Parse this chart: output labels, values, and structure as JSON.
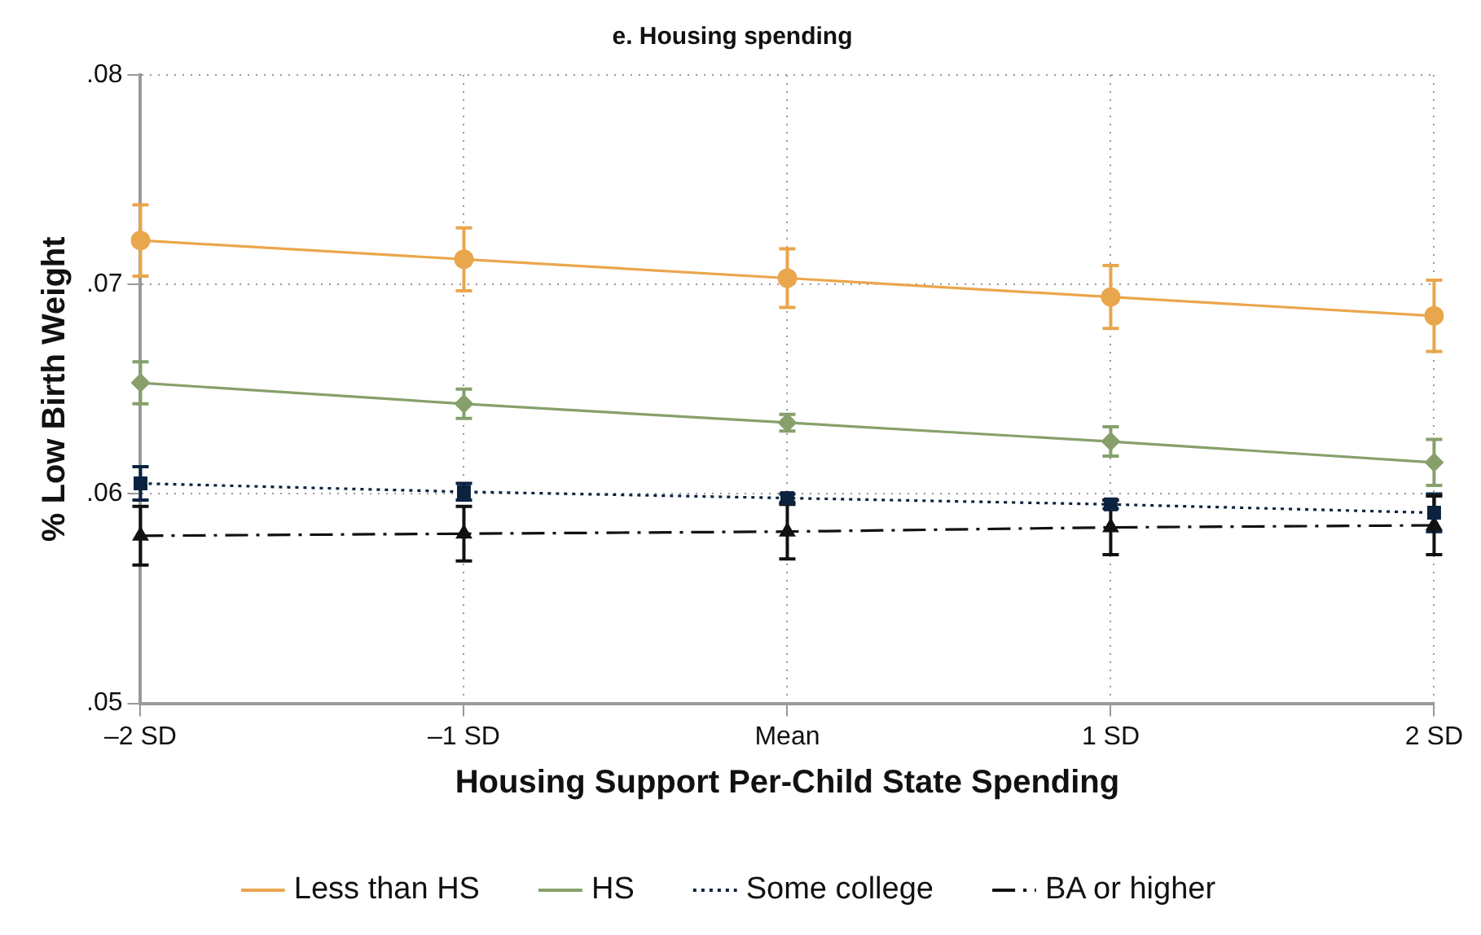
{
  "chart_data": {
    "type": "line",
    "title": "e. Housing spending",
    "xlabel": "Housing Support Per-Child State Spending",
    "ylabel": "% Low Birth Weight",
    "categories": [
      "–2 SD",
      "–1 SD",
      "Mean",
      "1 SD",
      "2 SD"
    ],
    "series": [
      {
        "name": "Less than HS",
        "color": "#eaa64c",
        "marker": "circle",
        "line_style": "solid",
        "values": [
          0.0721,
          0.0712,
          0.0703,
          0.0694,
          0.0685
        ],
        "errors": [
          0.0017,
          0.0015,
          0.0014,
          0.0015,
          0.0017
        ]
      },
      {
        "name": "HS",
        "color": "#87a06b",
        "marker": "diamond",
        "line_style": "solid",
        "values": [
          0.0653,
          0.0643,
          0.0634,
          0.0625,
          0.0615
        ],
        "errors": [
          0.001,
          0.0007,
          0.0004,
          0.0007,
          0.0011
        ]
      },
      {
        "name": "Some college",
        "color": "#0c2340",
        "marker": "square",
        "line_style": "dotted",
        "values": [
          0.0605,
          0.0601,
          0.0598,
          0.0595,
          0.0591
        ],
        "errors": [
          0.0008,
          0.0004,
          0.0002,
          0.0002,
          0.0009
        ]
      },
      {
        "name": "BA or higher",
        "color": "#111111",
        "marker": "triangle",
        "line_style": "dashed",
        "values": [
          0.058,
          0.0581,
          0.0582,
          0.0584,
          0.0585
        ],
        "errors": [
          0.0014,
          0.0013,
          0.0013,
          0.0013,
          0.0014
        ]
      }
    ],
    "ylim": [
      0.05,
      0.08
    ],
    "yticks": [
      {
        "value": 0.05,
        "label": ".05"
      },
      {
        "value": 0.06,
        "label": ".06"
      },
      {
        "value": 0.07,
        "label": ".07"
      },
      {
        "value": 0.08,
        "label": ".08"
      }
    ],
    "grid": true,
    "legend": "bottom"
  }
}
